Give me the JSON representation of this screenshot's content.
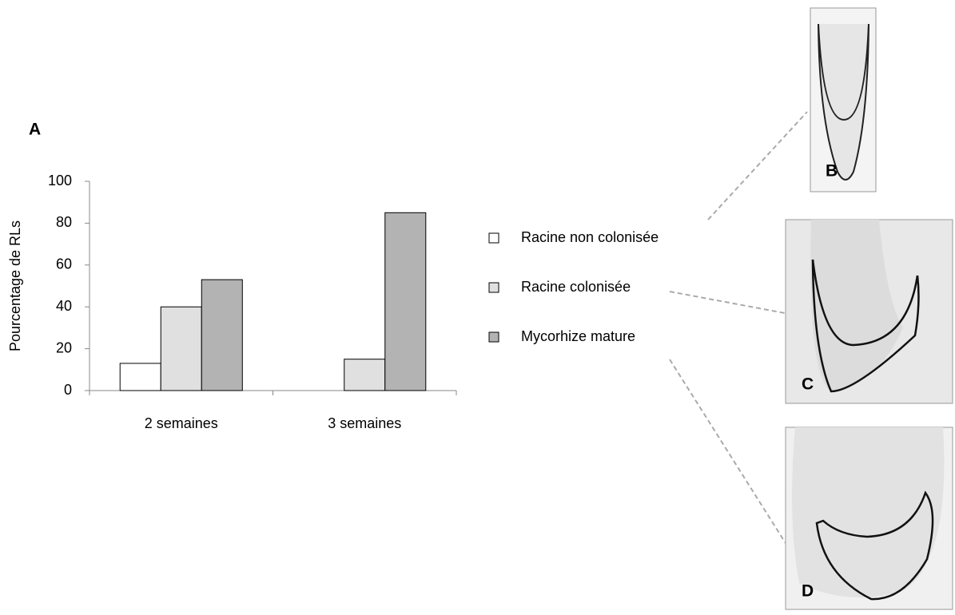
{
  "chart_data": {
    "type": "bar",
    "ylabel": "Pourcentage de RLs",
    "categories": [
      "2 semaines",
      "3 semaines"
    ],
    "series": [
      {
        "name": "Racine non colonisée",
        "color": "#ffffff",
        "values": [
          13,
          0
        ]
      },
      {
        "name": "Racine colonisée",
        "color": "#e0e0e0",
        "values": [
          40,
          15
        ]
      },
      {
        "name": "Mycorhize mature",
        "color": "#b3b3b3",
        "values": [
          53,
          85
        ]
      }
    ],
    "ylim": [
      0,
      100
    ],
    "yticks": [
      0,
      20,
      40,
      60,
      80,
      100
    ],
    "grid": false
  },
  "panel_labels": [
    "A",
    "B",
    "C",
    "D"
  ]
}
